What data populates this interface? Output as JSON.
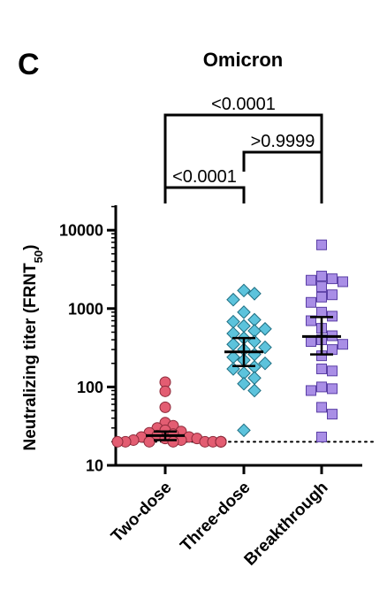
{
  "panel_label": "C",
  "chart_data": {
    "type": "scatter",
    "title": "Omicron",
    "ylabel_main": "Neutralizing titer (FRNT",
    "ylabel_sub": "50",
    "ylabel_end": ")",
    "y_scale": "log",
    "ylim": [
      10,
      20000
    ],
    "yticks": [
      10,
      100,
      1000,
      10000
    ],
    "ytick_labels": [
      "10",
      "100",
      "1000",
      "10000"
    ],
    "detection_limit": 20,
    "categories": [
      "Two-dose",
      "Three-dose",
      "Breakthrough"
    ],
    "series": [
      {
        "marker": "circle",
        "color": "#e35d72",
        "edge": "#8c2a3a",
        "values": [
          115,
          88,
          55,
          35,
          32,
          30,
          28,
          27,
          26,
          25,
          24,
          23,
          23,
          22,
          22,
          21,
          21,
          20,
          20,
          20,
          20,
          20,
          20,
          20,
          20,
          20,
          20,
          20,
          20
        ],
        "geomean": 24,
        "ci": [
          21,
          27
        ]
      },
      {
        "marker": "diamond",
        "color": "#5cc3dc",
        "edge": "#1f6f83",
        "values": [
          1700,
          1550,
          1300,
          900,
          720,
          680,
          600,
          550,
          520,
          480,
          420,
          380,
          350,
          320,
          300,
          260,
          240,
          220,
          200,
          180,
          170,
          150,
          130,
          110,
          90,
          28
        ],
        "geomean": 280,
        "ci": [
          185,
          420
        ]
      },
      {
        "marker": "square",
        "color": "#a98ee6",
        "edge": "#5a3fa5",
        "values": [
          6500,
          2600,
          2400,
          2300,
          2200,
          1900,
          1500,
          1400,
          1200,
          900,
          800,
          700,
          560,
          450,
          400,
          380,
          350,
          300,
          250,
          170,
          160,
          100,
          95,
          90,
          55,
          45,
          23
        ],
        "geomean": 440,
        "ci": [
          260,
          780
        ]
      }
    ],
    "comparisons": [
      {
        "from": 0,
        "to": 2,
        "label": "<0.0001"
      },
      {
        "from": 1,
        "to": 2,
        "label": ">0.9999"
      },
      {
        "from": 0,
        "to": 1,
        "label": "<0.0001"
      }
    ]
  }
}
